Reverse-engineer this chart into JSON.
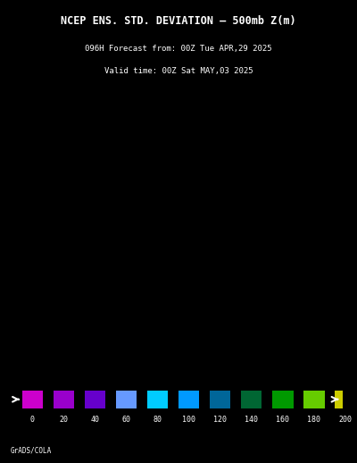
{
  "title_line1": "NCEP ENS. STD. DEVIATION – 500mb Z(m)",
  "title_line2": "096H Forecast from: 00Z Tue APR,29 2025",
  "title_line3": "Valid time: 00Z Sat MAY,03 2025",
  "colorbar_values": [
    0,
    20,
    40,
    60,
    80,
    100,
    120,
    140,
    160,
    180,
    200
  ],
  "colorbar_colors": [
    "#cc00cc",
    "#9900cc",
    "#6600cc",
    "#6699ff",
    "#00ccff",
    "#0099ff",
    "#006699",
    "#006633",
    "#009900",
    "#66cc00",
    "#cccc00",
    "#ffcc00",
    "#ff9900",
    "#ff6600",
    "#cc3300"
  ],
  "background_color": "#000000",
  "map_bg_purple": "#9900aa",
  "map_bg_blue": "#00ccff",
  "footer_text": "GrADS/COLA",
  "fig_width": 4.0,
  "fig_height": 5.18
}
